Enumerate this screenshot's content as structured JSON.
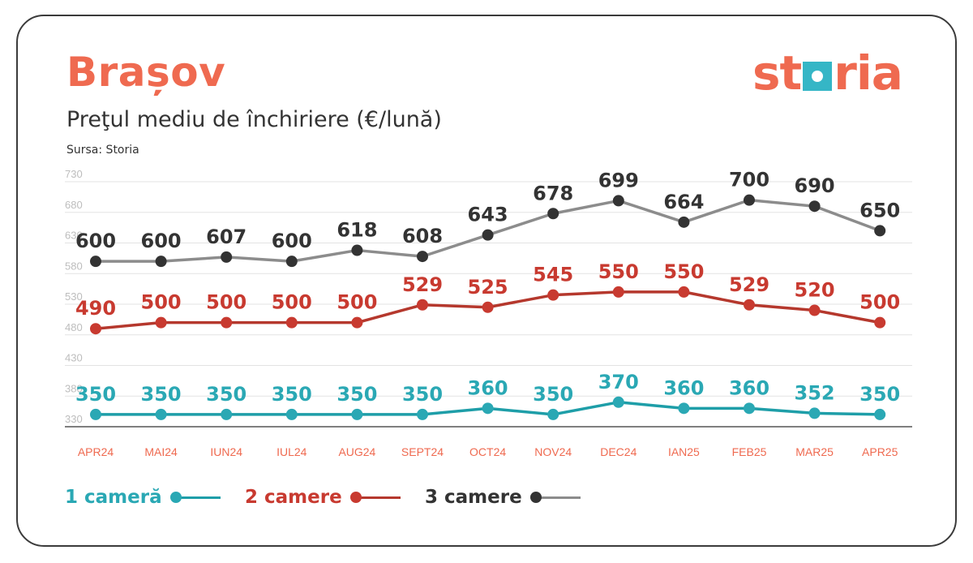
{
  "header": {
    "title": "Brașov",
    "subtitle": "Preţul mediu de închiriere (€/lună)",
    "source": "Sursa: Storia"
  },
  "logo": {
    "text_left": "st",
    "text_right": "ria"
  },
  "colors": {
    "accent": "#ef6a50",
    "teal": "#1e9ea8",
    "red": "#c83a30",
    "gray": "#8c8c8c",
    "dark": "#333333"
  },
  "chart_data": {
    "type": "line",
    "title": "Preţul mediu de închiriere (€/lună)",
    "categories": [
      "APR24",
      "MAI24",
      "IUN24",
      "IUL24",
      "AUG24",
      "SEPT24",
      "OCT24",
      "NOV24",
      "DEC24",
      "IAN25",
      "FEB25",
      "MAR25",
      "APR25"
    ],
    "y_ticks": [
      330,
      380,
      430,
      480,
      530,
      580,
      630,
      680,
      730
    ],
    "ylim": [
      330,
      730
    ],
    "grid": true,
    "legend_position": "bottom-left",
    "series": [
      {
        "name": "1 cameră",
        "color": "#1e9ea8",
        "label_color": "#2aa8b4",
        "values": [
          350,
          350,
          350,
          350,
          350,
          350,
          360,
          350,
          370,
          360,
          360,
          352,
          350
        ]
      },
      {
        "name": "2 camere",
        "color": "#b5382d",
        "label_color": "#c83a30",
        "values": [
          490,
          500,
          500,
          500,
          500,
          529,
          525,
          545,
          550,
          550,
          529,
          520,
          500
        ]
      },
      {
        "name": "3 camere",
        "color": "#8c8c8c",
        "label_color": "#333333",
        "values": [
          600,
          600,
          607,
          600,
          618,
          608,
          643,
          678,
          699,
          664,
          700,
          690,
          650
        ]
      }
    ]
  }
}
